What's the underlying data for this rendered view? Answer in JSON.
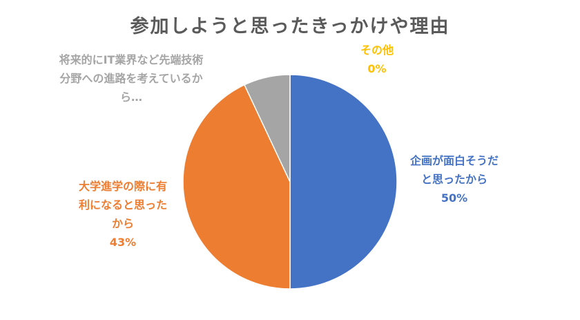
{
  "chart_data": {
    "type": "pie",
    "title": "参加しようと思ったきっかけや理由",
    "start_angle_deg": 0,
    "direction": "clockwise",
    "slices": [
      {
        "label_lines": [
          "企画が面白そうだ",
          "と思ったから"
        ],
        "percent_label": "50%",
        "value": 50,
        "color": "#4472c4"
      },
      {
        "label_lines": [
          "大学進学の際に有",
          "利になると思った",
          "から"
        ],
        "percent_label": "43%",
        "value": 43,
        "color": "#ed7d31"
      },
      {
        "label_lines": [
          "将来的にIT業界など先端技術",
          "分野への進路を考えているか",
          "ら…"
        ],
        "percent_label": "",
        "value": 7,
        "color": "#a5a5a5"
      },
      {
        "label_lines": [
          "その他"
        ],
        "percent_label": "0%",
        "value": 0,
        "color": "#ffc000"
      }
    ],
    "legend": "none"
  }
}
